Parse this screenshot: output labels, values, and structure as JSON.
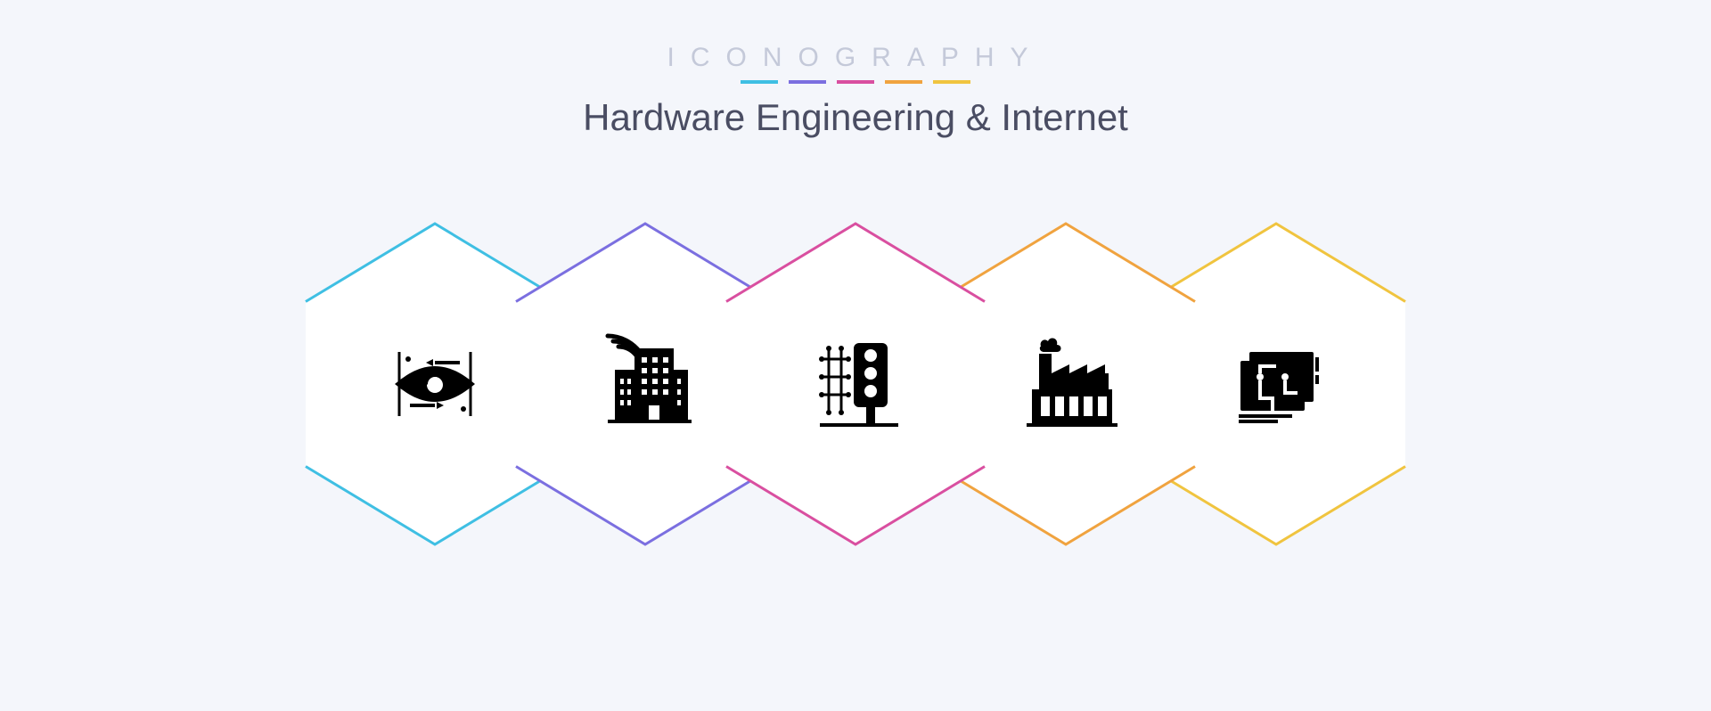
{
  "header": {
    "brand": "ICONOGRAPHY",
    "subtitle": "Hardware Engineering & Internet"
  },
  "accent_colors": [
    "#3fbfe3",
    "#7b6fe0",
    "#d94fa0",
    "#f0a33f",
    "#f0c43f"
  ],
  "page_background": "#f4f6fb",
  "hex_fill": "#ffffff",
  "glyph_color": "#000000",
  "underline": {
    "width": 42,
    "height": 4
  },
  "icons": [
    {
      "name": "eye-vision-icon",
      "top_accent": "#3fbfe3",
      "bottom_accent": "#3fbfe3"
    },
    {
      "name": "smart-building-icon",
      "top_accent": "#7b6fe0",
      "bottom_accent": "#7b6fe0"
    },
    {
      "name": "traffic-light-icon",
      "top_accent": "#d94fa0",
      "bottom_accent": "#d94fa0"
    },
    {
      "name": "factory-icon",
      "top_accent": "#f0a33f",
      "bottom_accent": "#f0a33f"
    },
    {
      "name": "circuit-board-icon",
      "top_accent": "#f0c43f",
      "bottom_accent": "#f0c43f"
    }
  ],
  "hex_points": {
    "top": "160,5 305,92.5",
    "tr": "305,92.5 305,277.5",
    "br": "305,277.5 160,365",
    "bottom": "160,365 15,277.5",
    "bl": "15,277.5 15,92.5",
    "tl": "15,92.5 160,5"
  }
}
